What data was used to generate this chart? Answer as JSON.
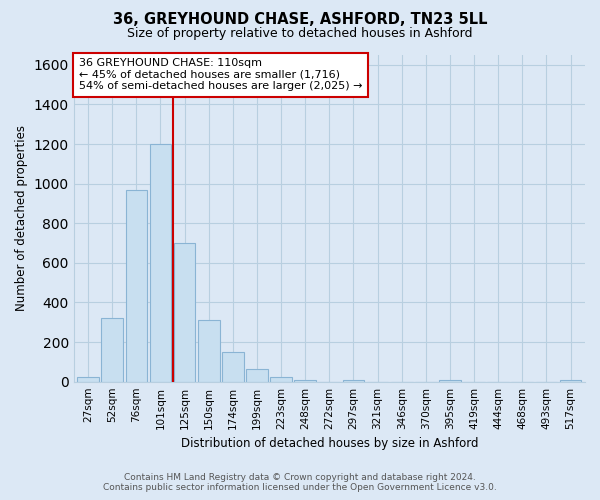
{
  "title": "36, GREYHOUND CHASE, ASHFORD, TN23 5LL",
  "subtitle": "Size of property relative to detached houses in Ashford",
  "xlabel": "Distribution of detached houses by size in Ashford",
  "ylabel": "Number of detached properties",
  "bar_labels": [
    "27sqm",
    "52sqm",
    "76sqm",
    "101sqm",
    "125sqm",
    "150sqm",
    "174sqm",
    "199sqm",
    "223sqm",
    "248sqm",
    "272sqm",
    "297sqm",
    "321sqm",
    "346sqm",
    "370sqm",
    "395sqm",
    "419sqm",
    "444sqm",
    "468sqm",
    "493sqm",
    "517sqm"
  ],
  "bar_values": [
    22,
    320,
    970,
    1200,
    700,
    310,
    150,
    65,
    25,
    10,
    0,
    10,
    0,
    0,
    0,
    10,
    0,
    0,
    0,
    0,
    10
  ],
  "bar_color": "#c8dff0",
  "bar_edge_color": "#8ab4d4",
  "vline_color": "#cc0000",
  "annotation_title": "36 GREYHOUND CHASE: 110sqm",
  "annotation_line1": "← 45% of detached houses are smaller (1,716)",
  "annotation_line2": "54% of semi-detached houses are larger (2,025) →",
  "annotation_box_color": "white",
  "annotation_box_edge": "#cc0000",
  "ylim": [
    0,
    1650
  ],
  "yticks": [
    0,
    200,
    400,
    600,
    800,
    1000,
    1200,
    1400,
    1600
  ],
  "footer_line1": "Contains HM Land Registry data © Crown copyright and database right 2024.",
  "footer_line2": "Contains public sector information licensed under the Open Government Licence v3.0.",
  "bg_color": "#dce8f5",
  "plot_bg_color": "#dce8f5",
  "grid_color": "#b8cfe0"
}
